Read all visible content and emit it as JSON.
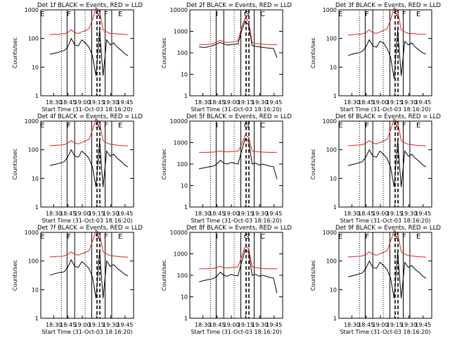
{
  "colors": {
    "events": "#000000",
    "lld": "#e0201a",
    "axes": "#000000"
  },
  "chart_data": [
    {
      "type": "line",
      "title": "Det 1f BLACK = Events, RED = LLD",
      "xlabel": "Start Time (31-Oct-03 18:16:20)",
      "ylabel": "Counts/sec",
      "x_ticks": [
        "18:30",
        "18:45",
        "19:00",
        "19:15",
        "19:30",
        "19:45"
      ],
      "y_ticks": [
        "1",
        "10",
        "100",
        "1000"
      ],
      "ylim": [
        1,
        1000
      ],
      "y_scale": "log",
      "time_range": [
        "18:16:20",
        "19:54"
      ],
      "region_letters": [
        "E",
        "F",
        "S",
        "F",
        "E"
      ],
      "series": [
        {
          "color": "black",
          "values": [
            28,
            30,
            32,
            35,
            38,
            50,
            100,
            60,
            55,
            90,
            70,
            50,
            25,
            5,
            200,
            5,
            90,
            60,
            70,
            50,
            40,
            30,
            25
          ]
        },
        {
          "color": "red",
          "values": [
            135,
            140,
            140,
            145,
            145,
            160,
            200,
            160,
            150,
            170,
            190,
            220,
            450,
            1200,
            900,
            200,
            170,
            150,
            150,
            145,
            140,
            140,
            135
          ]
        }
      ]
    },
    {
      "type": "line",
      "title": "Det 2f BLACK = Events, RED = LLD",
      "xlabel": "Start Time (31-Oct-03 18:16:20)",
      "ylabel": "Counts/sec",
      "x_ticks": [
        "18:30",
        "18:45",
        "19:00",
        "19:15",
        "19:30",
        "19:45"
      ],
      "y_ticks": [
        "1",
        "10",
        "100",
        "1000",
        "10000"
      ],
      "ylim": [
        1,
        10000
      ],
      "y_scale": "log",
      "time_range": [
        "18:16:20",
        "19:54"
      ],
      "region_letters": [
        "I",
        "G",
        "C"
      ],
      "series": [
        {
          "color": "black",
          "values": [
            190,
            180,
            180,
            200,
            220,
            260,
            300,
            260,
            230,
            240,
            250,
            260,
            1000,
            3000,
            2000,
            220,
            200,
            190,
            180,
            170,
            165,
            160,
            60
          ]
        },
        {
          "color": "red",
          "values": [
            240,
            240,
            240,
            250,
            270,
            320,
            380,
            330,
            300,
            310,
            330,
            360,
            1500,
            4000,
            3000,
            300,
            270,
            260,
            250,
            245,
            240,
            240,
            240
          ]
        }
      ]
    },
    {
      "type": "line",
      "title": "Det 3f BLACK = Events, RED = LLD",
      "xlabel": "Start Time (31-Oct-03 18:16:20)",
      "ylabel": "Counts/sec",
      "x_ticks": [
        "18:30",
        "18:45",
        "19:00",
        "19:15",
        "19:30",
        "19:45"
      ],
      "y_ticks": [
        "1",
        "10",
        "100",
        "1000"
      ],
      "ylim": [
        1,
        1000
      ],
      "y_scale": "log",
      "time_range": [
        "18:16:20",
        "19:54"
      ],
      "region_letters": [
        "E",
        "F",
        "S",
        "F",
        "E"
      ],
      "series": [
        {
          "color": "black",
          "values": [
            25,
            28,
            30,
            32,
            35,
            50,
            90,
            55,
            50,
            80,
            70,
            45,
            22,
            4,
            200,
            5,
            80,
            60,
            70,
            50,
            40,
            32,
            28
          ]
        },
        {
          "color": "red",
          "values": [
            130,
            135,
            140,
            140,
            145,
            160,
            200,
            160,
            150,
            170,
            190,
            220,
            450,
            1200,
            900,
            200,
            170,
            150,
            150,
            145,
            140,
            140,
            140
          ]
        }
      ]
    },
    {
      "type": "line",
      "title": "Det 4f BLACK = Events, RED = LLD",
      "xlabel": "Start Time (31-Oct-03 18:16:20)",
      "ylabel": "Counts/sec",
      "x_ticks": [
        "18:30",
        "18:45",
        "19:00",
        "19:15",
        "19:30",
        "19:45"
      ],
      "y_ticks": [
        "1",
        "10",
        "100",
        "1000"
      ],
      "ylim": [
        1,
        1000
      ],
      "y_scale": "log",
      "time_range": [
        "18:16:20",
        "19:54"
      ],
      "region_letters": [
        "E",
        "F",
        "S",
        "F",
        "E"
      ],
      "series": [
        {
          "color": "black",
          "values": [
            28,
            30,
            32,
            35,
            38,
            55,
            100,
            60,
            55,
            90,
            70,
            50,
            25,
            5,
            200,
            5,
            90,
            60,
            70,
            50,
            40,
            30,
            25
          ]
        },
        {
          "color": "red",
          "values": [
            140,
            140,
            145,
            145,
            150,
            170,
            210,
            170,
            160,
            180,
            200,
            230,
            480,
            1200,
            900,
            210,
            175,
            155,
            150,
            145,
            140,
            140,
            135
          ]
        }
      ]
    },
    {
      "type": "line",
      "title": "Det 5f BLACK = Events, RED = LLD",
      "xlabel": "Start Time (31-Oct-03 18:16:20)",
      "ylabel": "Counts/sec",
      "x_ticks": [
        "18:30",
        "18:45",
        "19:00",
        "19:15",
        "19:30",
        "19:45"
      ],
      "y_ticks": [
        "1",
        "10",
        "100",
        "1000",
        "10000"
      ],
      "ylim": [
        1,
        10000
      ],
      "y_scale": "log",
      "time_range": [
        "18:16:20",
        "19:54"
      ],
      "region_letters": [
        "I",
        "G",
        "C"
      ],
      "series": [
        {
          "color": "black",
          "values": [
            60,
            65,
            70,
            75,
            80,
            100,
            150,
            110,
            100,
            120,
            110,
            100,
            400,
            1500,
            1200,
            100,
            110,
            90,
            100,
            90,
            80,
            75,
            20
          ]
        },
        {
          "color": "red",
          "values": [
            350,
            350,
            350,
            355,
            360,
            380,
            400,
            380,
            370,
            380,
            390,
            400,
            800,
            2200,
            1800,
            400,
            380,
            370,
            360,
            355,
            350,
            350,
            350
          ]
        }
      ]
    },
    {
      "type": "line",
      "title": "Det 6f BLACK = Events, RED = LLD",
      "xlabel": "Start Time (31-Oct-03 18:16:20)",
      "ylabel": "Counts/sec",
      "x_ticks": [
        "18:30",
        "18:45",
        "19:00",
        "19:15",
        "19:30",
        "19:45"
      ],
      "y_ticks": [
        "1",
        "10",
        "100",
        "1000"
      ],
      "ylim": [
        1,
        1000
      ],
      "y_scale": "log",
      "time_range": [
        "18:16:20",
        "19:54"
      ],
      "region_letters": [
        "E",
        "F",
        "S",
        "F",
        "E"
      ],
      "series": [
        {
          "color": "black",
          "values": [
            28,
            30,
            32,
            35,
            38,
            55,
            100,
            60,
            55,
            90,
            70,
            50,
            25,
            5,
            200,
            5,
            90,
            60,
            70,
            50,
            40,
            30,
            25
          ]
        },
        {
          "color": "red",
          "values": [
            140,
            140,
            145,
            145,
            150,
            170,
            210,
            170,
            160,
            180,
            200,
            230,
            480,
            1200,
            900,
            210,
            175,
            155,
            150,
            145,
            140,
            140,
            135
          ]
        }
      ]
    },
    {
      "type": "line",
      "title": "Det 7f BLACK = Events, RED = LLD",
      "xlabel": "Start Time (31-Oct-03 18:16:20)",
      "ylabel": "Counts/sec",
      "x_ticks": [
        "18:30",
        "18:45",
        "19:00",
        "19:15",
        "19:30",
        "19:45"
      ],
      "y_ticks": [
        "1",
        "10",
        "100",
        "1000"
      ],
      "ylim": [
        1,
        1000
      ],
      "y_scale": "log",
      "time_range": [
        "18:16:20",
        "19:54"
      ],
      "region_letters": [
        "E",
        "F",
        "S",
        "F",
        "E"
      ],
      "series": [
        {
          "color": "black",
          "values": [
            32,
            35,
            38,
            40,
            42,
            60,
            110,
            65,
            60,
            95,
            75,
            55,
            28,
            5,
            220,
            5,
            100,
            65,
            75,
            55,
            45,
            35,
            30
          ]
        },
        {
          "color": "red",
          "values": [
            140,
            140,
            145,
            145,
            150,
            170,
            210,
            170,
            160,
            180,
            200,
            230,
            480,
            1200,
            900,
            210,
            175,
            155,
            150,
            145,
            140,
            140,
            135
          ]
        }
      ]
    },
    {
      "type": "line",
      "title": "Det 8f BLACK = Events, RED = LLD",
      "xlabel": "Start Time (31-Oct-03 18:16:20)",
      "ylabel": "Counts/sec",
      "x_ticks": [
        "18:30",
        "18:45",
        "19:00",
        "19:15",
        "19:30",
        "19:45"
      ],
      "y_ticks": [
        "1",
        "10",
        "100",
        "1000",
        "10000"
      ],
      "ylim": [
        1,
        10000
      ],
      "y_scale": "log",
      "time_range": [
        "18:16:20",
        "19:54"
      ],
      "region_letters": [
        "I",
        "G",
        "C"
      ],
      "series": [
        {
          "color": "black",
          "values": [
            50,
            55,
            60,
            65,
            70,
            90,
            140,
            100,
            90,
            110,
            100,
            95,
            400,
            1500,
            1200,
            100,
            110,
            90,
            100,
            90,
            80,
            75,
            15
          ]
        },
        {
          "color": "red",
          "values": [
            200,
            200,
            200,
            205,
            210,
            230,
            260,
            230,
            220,
            230,
            240,
            250,
            700,
            2200,
            1800,
            250,
            230,
            220,
            210,
            205,
            200,
            200,
            200
          ]
        }
      ]
    },
    {
      "type": "line",
      "title": "Det 9f BLACK = Events, RED = LLD",
      "xlabel": "Start Time (31-Oct-03 18:16:20)",
      "ylabel": "Counts/sec",
      "x_ticks": [
        "18:30",
        "18:45",
        "19:00",
        "19:15",
        "19:30",
        "19:45"
      ],
      "y_ticks": [
        "1",
        "10",
        "100",
        "1000"
      ],
      "ylim": [
        1,
        1000
      ],
      "y_scale": "log",
      "time_range": [
        "18:16:20",
        "19:54"
      ],
      "region_letters": [
        "E",
        "F",
        "S",
        "F",
        "E"
      ],
      "series": [
        {
          "color": "black",
          "values": [
            28,
            30,
            32,
            35,
            38,
            55,
            100,
            60,
            55,
            90,
            70,
            50,
            25,
            5,
            200,
            5,
            90,
            60,
            70,
            50,
            40,
            30,
            25
          ]
        },
        {
          "color": "red",
          "values": [
            140,
            140,
            145,
            145,
            150,
            170,
            210,
            170,
            160,
            180,
            200,
            230,
            480,
            1200,
            900,
            210,
            175,
            155,
            150,
            145,
            140,
            140,
            135
          ]
        }
      ]
    }
  ]
}
